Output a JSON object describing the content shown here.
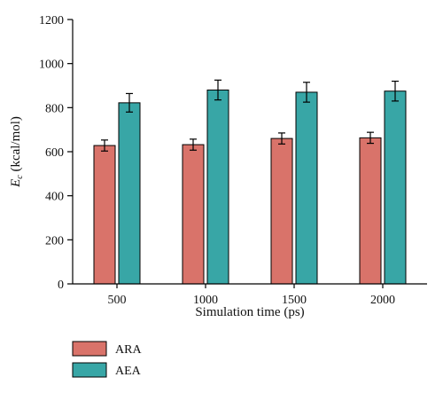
{
  "chart_data": {
    "type": "bar",
    "categories": [
      "500",
      "1000",
      "1500",
      "2000"
    ],
    "series": [
      {
        "name": "ARA",
        "color": "#D9736A",
        "values": [
          628,
          632,
          660,
          663
        ],
        "errors": [
          25,
          25,
          25,
          25
        ]
      },
      {
        "name": "AEA",
        "color": "#38A6A6",
        "values": [
          822,
          880,
          870,
          875
        ],
        "errors": [
          42,
          45,
          45,
          45
        ]
      }
    ],
    "xlabel": "Simulation time (ps)",
    "ylabel_main": "E",
    "ylabel_sub": "c",
    "ylabel_unit": " (kcal/mol)",
    "ylim": [
      0,
      1200
    ],
    "yticks": [
      0,
      200,
      400,
      600,
      800,
      1000,
      1200
    ],
    "legend_position": "bottom-left",
    "grid": false
  }
}
